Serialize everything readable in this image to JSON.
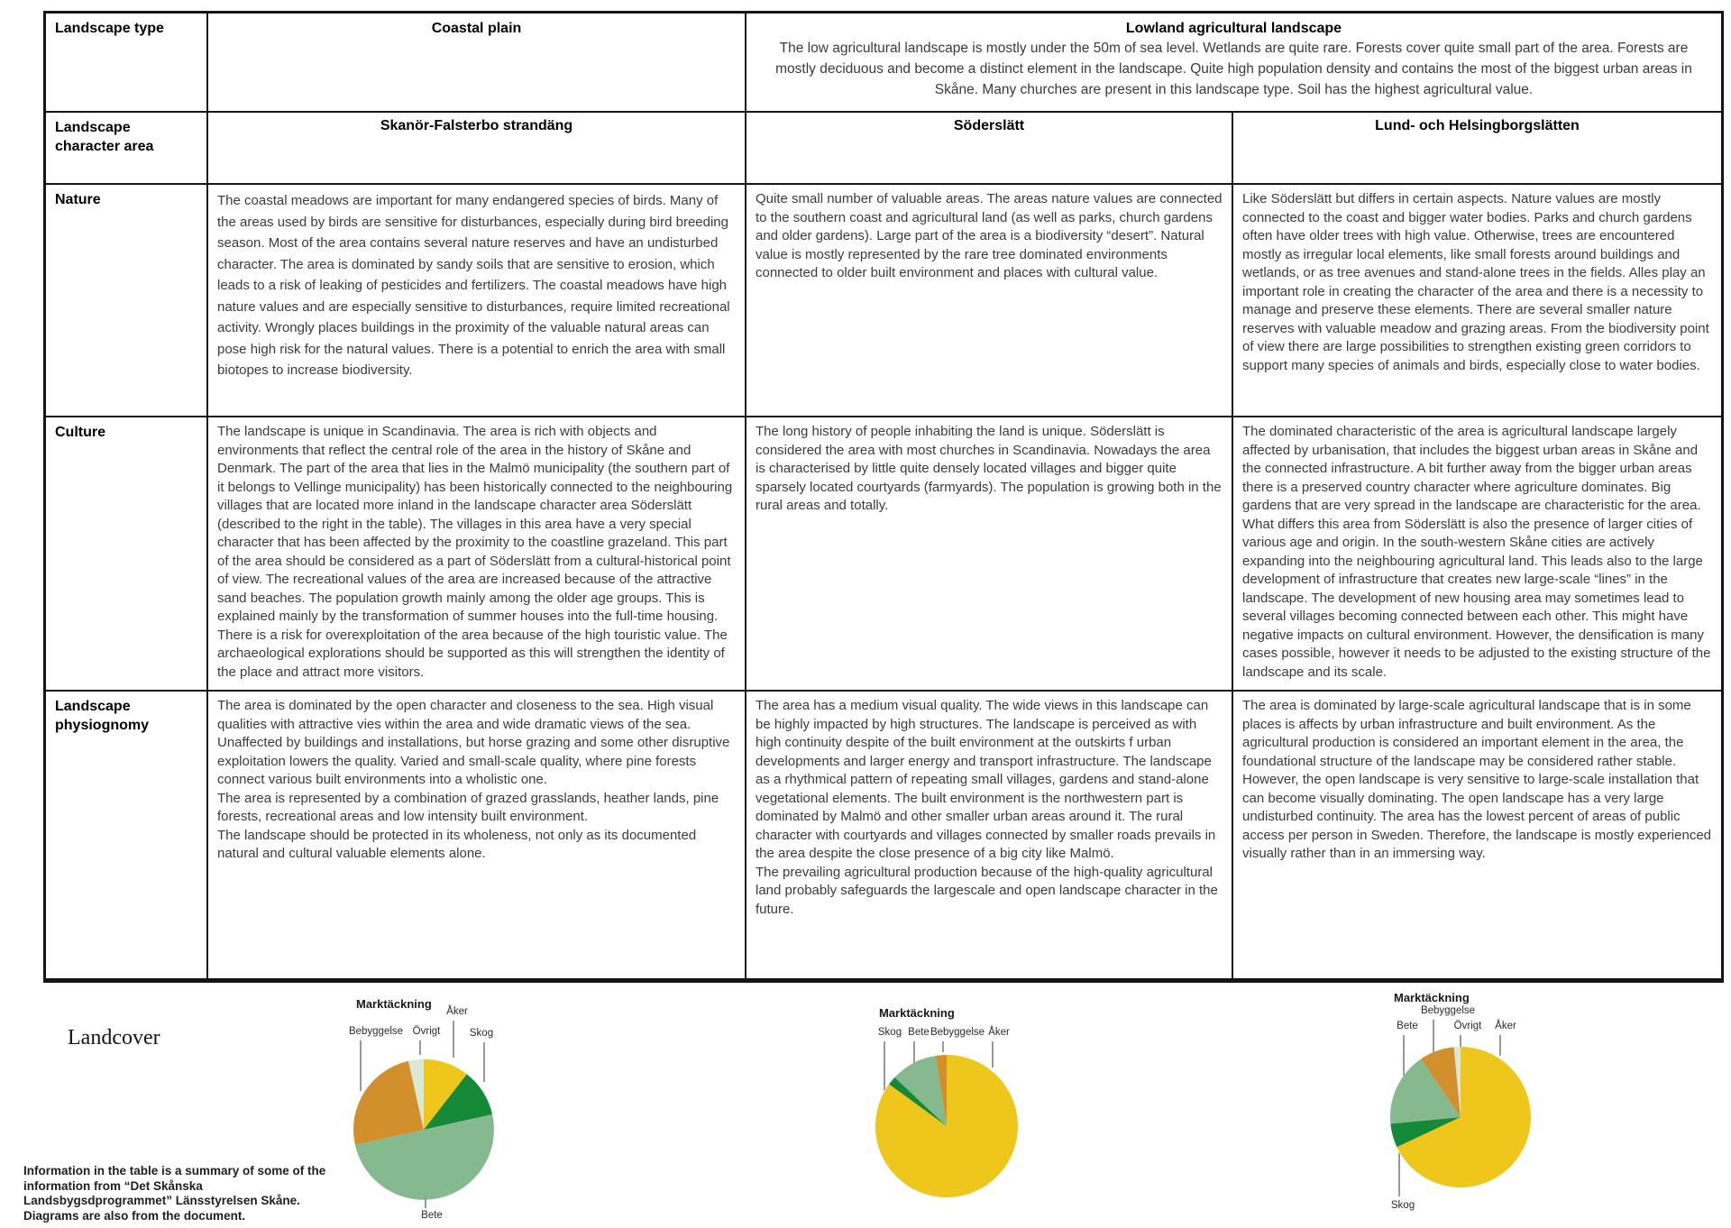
{
  "table": {
    "type_row": {
      "label": "Landscape type",
      "col2_title": "Coastal plain",
      "col34_title": "Lowland agricultural landscape",
      "col34_desc": "The low agricultural landscape is mostly under the 50m of sea level.  Wetlands are quite rare. Forests cover quite small part of the area. Forests are mostly deciduous and become a distinct element in the landscape. Quite high population density and contains the most of the biggest urban areas in Skåne. Many churches are present in this landscape type. Soil has the highest agricultural value."
    },
    "area_row": {
      "label": "Landscape character area",
      "areas": [
        "Skanör-Falsterbo strandäng",
        "Söderslätt",
        "Lund- och Helsingborgslätten"
      ]
    },
    "rows": [
      {
        "label": "Nature",
        "cells": [
          "The coastal meadows are important for many endangered species of birds. Many of the areas used by birds are sensitive for disturbances, especially during bird breeding season. Most of the area contains several nature reserves and have an undisturbed character. The area is dominated by sandy soils that are sensitive to erosion, which leads to a risk of leaking of pesticides and fertilizers. The coastal meadows have high nature values and are especially sensitive to disturbances, require limited recreational activity. Wrongly places buildings in the proximity of the valuable natural areas can pose high risk for the natural values. There is a potential to enrich the area with small biotopes to increase biodiversity.",
          "Quite small number of valuable areas. The areas nature values are connected to the southern coast and agricultural land (as well as parks, church gardens and older gardens). Large part of the area is a biodiversity “desert”. Natural value is mostly represented by the rare tree dominated environments connected to older built environment and places with cultural value.",
          "Like Söderslätt but differs in certain aspects. Nature values are mostly connected to the coast and bigger water bodies. Parks and church gardens often have older trees with high value. Otherwise, trees are encountered mostly as irregular local elements, like small forests around buildings and wetlands, or as tree avenues and stand-alone trees in the fields. Alles play an important role in creating the character of the area and there is a necessity to manage and preserve these elements. There are several smaller nature reserves with valuable meadow and grazing areas. From the biodiversity point of view there are large possibilities to strengthen existing green corridors to support many species of animals and birds, especially close to water bodies."
        ]
      },
      {
        "label": "Culture",
        "cells": [
          "The landscape is unique in Scandinavia. The area is rich with objects and environments that reflect the central role of the area in the history of Skåne and Denmark. The part of the area that lies in the Malmö municipality (the southern part of it belongs to Vellinge municipality) has been historically connected to the neighbouring villages that are located more inland in the landscape character area Söderslätt (described to the right in the table). The villages in this area have a very special character that has been affected by the proximity to the coastline grazeland. This part of the area should be considered as a part of Söderslätt from a cultural-historical point of view. The recreational values of the area are increased because of the attractive sand beaches. The population growth mainly among the older age groups. This is explained mainly by the transformation of summer houses into the full-time housing. There is a risk for overexploitation of the area because of the high touristic value. The archaeological explorations should be supported as this will strengthen the identity of the place and attract more visitors.",
          "The long history of people inhabiting the land is unique. Söderslätt is considered the area with most churches in Scandinavia. Nowadays the area is characterised by little quite densely located villages and bigger quite sparsely located courtyards (farmyards).  The population is growing both in the rural areas and totally.",
          "The dominated characteristic of the area is agricultural landscape largely affected by urbanisation, that includes the biggest urban areas in Skåne and the connected infrastructure. A bit further away from the bigger urban areas there is a preserved country character where agriculture dominates. Big gardens that are very spread in the landscape are characteristic for the area. What differs this area from Söderslätt is also the presence of larger cities of various age and origin. In the south-western Skåne cities are actively expanding into the neighbouring agricultural land. This leads also to the large development of infrastructure that creates new large-scale “lines” in the landscape. The development of new housing area may sometimes lead to several villages becoming connected between each other. This might have negative impacts on cultural environment. However, the densification is many cases possible, however it needs to be adjusted to the existing structure of the landscape and its scale."
        ]
      },
      {
        "label": "Landscape physiognomy",
        "cells": [
          "The area is dominated by the open character and closeness to the sea. High visual qualities with attractive vies within the area and wide dramatic views of the sea. Unaffected by buildings and installations, but horse grazing and some other disruptive exploitation lowers the quality. Varied and small-scale quality, where pine forests connect various built environments into a wholistic one.\nThe area is represented by a combination of grazed grasslands, heather lands, pine forests, recreational areas and low intensity built environment.\nThe landscape should be protected in its wholeness, not only as its documented natural and cultural valuable elements alone.",
          "The area has a medium visual quality. The wide views in this landscape can be highly impacted by high structures. The landscape is perceived as with high continuity despite of the built environment at the outskirts f urban developments and larger energy and transport infrastructure. The landscape as a rhythmical pattern of repeating small villages, gardens and stand-alone vegetational elements. The built environment is the northwestern part is dominated by Malmö and other smaller urban areas around it. The rural character with courtyards and villages connected by smaller roads prevails in the area despite the close presence of a big city like Malmö.\nThe prevailing agricultural production because of the high-quality agricultural land probably safeguards the largescale and open landscape character in the future.",
          "The area is dominated by large-scale agricultural landscape that is in some places is affects by urban infrastructure and built environment. As the agricultural production is considered an important element in the area, the foundational structure of the landscape may be considered rather stable. However, the open landscape is very sensitive to large-scale installation that can become visually dominating. The open landscape has a very large undisturbed continuity. The area has the lowest percent of areas of public access per person in Sweden. Therefore, the landscape is mostly experienced visually rather than in an immersing way."
        ]
      }
    ]
  },
  "landcover": {
    "label": "Landcover",
    "note": "Information in the table is a summary of some of the information from “Det Skånska Landsbygsdprogrammet” Länsstyrelsen Skåne. Diagrams are also from the document."
  },
  "colors": {
    "aker_yellow": "#efc61b",
    "skog_dark_green": "#168939",
    "bete_sage_green": "#85ba8e",
    "bebyggelse_orange": "#d1902c",
    "ovrigt_pale_green": "#d9e9d6",
    "leader_line_gray": "#9a9a9a",
    "border_black": "#161616"
  },
  "chart_data": [
    {
      "type": "pie",
      "title": "Marktäckning",
      "area": "Skanör-Falsterbo strandäng",
      "unit": "percent",
      "slices": [
        {
          "label": "Åker",
          "value": 10.5,
          "color": "#efc61b"
        },
        {
          "label": "Skog",
          "value": 11.0,
          "color": "#168939"
        },
        {
          "label": "Bete",
          "value": 50.0,
          "color": "#85ba8e"
        },
        {
          "label": "Bebyggelse",
          "value": 25.0,
          "color": "#d1902c"
        },
        {
          "label": "Övrigt",
          "value": 3.5,
          "color": "#d9e9d6"
        }
      ]
    },
    {
      "type": "pie",
      "title": "Marktäckning",
      "area": "Söderslätt",
      "unit": "percent",
      "slices": [
        {
          "label": "Åker",
          "value": 85.0,
          "color": "#efc61b"
        },
        {
          "label": "Skog",
          "value": 2.0,
          "color": "#168939"
        },
        {
          "label": "Bete",
          "value": 10.5,
          "color": "#85ba8e"
        },
        {
          "label": "Bebyggelse",
          "value": 2.5,
          "color": "#d1902c"
        }
      ]
    },
    {
      "type": "pie",
      "title": "Marktäckning",
      "area": "Lund- och Helsingborgslätten",
      "unit": "percent",
      "slices": [
        {
          "label": "Åker",
          "value": 68.0,
          "color": "#efc61b"
        },
        {
          "label": "Skog",
          "value": 5.5,
          "color": "#168939"
        },
        {
          "label": "Bete",
          "value": 17.0,
          "color": "#85ba8e"
        },
        {
          "label": "Bebyggelse",
          "value": 8.0,
          "color": "#d1902c"
        },
        {
          "label": "Övrigt",
          "value": 1.5,
          "color": "#d9e9d6"
        }
      ]
    }
  ]
}
